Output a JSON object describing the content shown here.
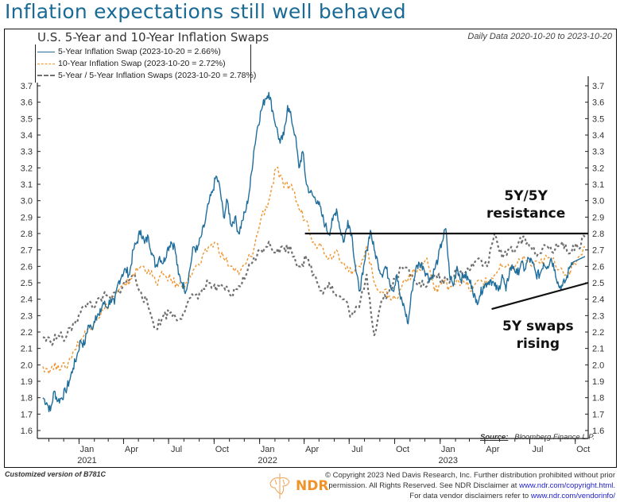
{
  "headline": "Inflation expectations still well behaved",
  "chart_data": {
    "type": "line",
    "title": "U.S. 5-Year and 10-Year Inflation Swaps",
    "subtitle_right": "Daily Data 2020-10-20 to 2023-10-20",
    "xlabel": "",
    "ylabel": "",
    "ylim": [
      1.55,
      3.75
    ],
    "yticks": [
      "1.6",
      "1.7",
      "1.8",
      "1.9",
      "2.0",
      "2.1",
      "2.2",
      "2.3",
      "2.4",
      "2.5",
      "2.6",
      "2.7",
      "2.8",
      "2.9",
      "3.0",
      "3.1",
      "3.2",
      "3.3",
      "3.4",
      "3.5",
      "3.6",
      "3.7"
    ],
    "xlim": [
      "2020-10-20",
      "2023-10-20"
    ],
    "xticks": [
      {
        "date": "2021-01-01",
        "label": "Jan",
        "year": "2021"
      },
      {
        "date": "2021-04-01",
        "label": "Apr",
        "year": ""
      },
      {
        "date": "2021-07-01",
        "label": "Jul",
        "year": ""
      },
      {
        "date": "2021-10-01",
        "label": "Oct",
        "year": ""
      },
      {
        "date": "2022-01-01",
        "label": "Jan",
        "year": "2022"
      },
      {
        "date": "2022-04-01",
        "label": "Apr",
        "year": ""
      },
      {
        "date": "2022-07-01",
        "label": "Jul",
        "year": ""
      },
      {
        "date": "2022-10-01",
        "label": "Oct",
        "year": ""
      },
      {
        "date": "2023-01-01",
        "label": "Jan",
        "year": "2023"
      },
      {
        "date": "2023-04-01",
        "label": "Apr",
        "year": ""
      },
      {
        "date": "2023-07-01",
        "label": "Jul",
        "year": ""
      },
      {
        "date": "2023-10-01",
        "label": "Oct",
        "year": ""
      }
    ],
    "grid": false,
    "legend_position": "top-left",
    "series": [
      {
        "name": "5-Year Inflation Swap (2023-10-20 = 2.66%)",
        "color": "#1f6e9c",
        "style": "solid",
        "x_months": [
          0,
          0.25,
          0.5,
          0.75,
          1,
          1.25,
          1.5,
          1.75,
          2,
          2.25,
          2.5,
          2.75,
          3,
          3.25,
          3.5,
          3.75,
          4,
          4.25,
          4.5,
          4.75,
          5,
          5.25,
          5.5,
          5.75,
          6,
          6.25,
          6.5,
          6.75,
          7,
          7.25,
          7.5,
          7.75,
          8,
          8.25,
          8.5,
          8.75,
          9,
          9.25,
          9.5,
          9.75,
          10,
          10.25,
          10.5,
          10.75,
          11,
          11.25,
          11.5,
          11.75,
          12,
          12.25,
          12.5,
          12.75,
          13,
          13.25,
          13.5,
          13.75,
          14,
          14.25,
          14.5,
          14.75,
          15,
          15.25,
          15.5,
          15.75,
          16,
          16.25,
          16.5,
          16.75,
          17,
          17.25,
          17.5,
          17.75,
          18,
          18.25,
          18.5,
          18.75,
          19,
          19.25,
          19.5,
          19.75,
          20,
          20.25,
          20.5,
          20.75,
          21,
          21.25,
          21.5,
          21.75,
          22,
          22.25,
          22.5,
          22.75,
          23,
          23.25,
          23.5,
          23.75,
          24,
          24.25,
          24.5,
          24.75,
          25,
          25.25,
          25.5,
          25.75,
          26,
          26.25,
          26.5,
          26.75,
          27,
          27.25,
          27.5,
          27.75,
          28,
          28.25,
          28.5,
          28.75,
          29,
          29.25,
          29.5,
          29.75,
          30,
          30.25,
          30.5,
          30.75,
          31,
          31.25,
          31.5,
          31.75,
          32,
          32.25,
          32.5,
          32.75,
          33,
          33.25,
          33.5,
          33.75,
          34,
          34.25,
          34.5,
          34.75,
          35,
          35.25,
          35.5,
          35.75,
          36
        ],
        "values": [
          1.8,
          1.77,
          1.72,
          1.84,
          1.78,
          1.8,
          1.84,
          1.9,
          1.98,
          2.05,
          2.15,
          2.12,
          2.24,
          2.22,
          2.3,
          2.3,
          2.38,
          2.35,
          2.4,
          2.37,
          2.5,
          2.55,
          2.58,
          2.55,
          2.7,
          2.75,
          2.82,
          2.74,
          2.78,
          2.68,
          2.6,
          2.66,
          2.62,
          2.7,
          2.75,
          2.72,
          2.55,
          2.5,
          2.45,
          2.58,
          2.72,
          2.7,
          2.78,
          2.86,
          2.98,
          3.05,
          3.15,
          3.08,
          2.9,
          3.0,
          2.85,
          2.9,
          2.8,
          2.88,
          2.95,
          3.08,
          3.3,
          3.45,
          3.55,
          3.62,
          3.66,
          3.55,
          3.45,
          3.35,
          3.4,
          3.58,
          3.5,
          3.4,
          3.2,
          3.3,
          3.1,
          3.05,
          3.02,
          3.0,
          2.92,
          2.85,
          2.8,
          2.88,
          2.95,
          2.82,
          2.75,
          2.88,
          2.8,
          2.6,
          2.45,
          2.55,
          2.7,
          2.82,
          2.7,
          2.62,
          2.55,
          2.6,
          2.52,
          2.45,
          2.55,
          2.4,
          2.35,
          2.25,
          2.45,
          2.58,
          2.62,
          2.6,
          2.55,
          2.52,
          2.58,
          2.65,
          2.75,
          2.83,
          2.55,
          2.48,
          2.6,
          2.52,
          2.55,
          2.52,
          2.48,
          2.38,
          2.42,
          2.48,
          2.5,
          2.52,
          2.48,
          2.45,
          2.55,
          2.45,
          2.58,
          2.6,
          2.55,
          2.62,
          2.58,
          2.65,
          2.62,
          2.55,
          2.55,
          2.62,
          2.6,
          2.65,
          2.58,
          2.48,
          2.48,
          2.52,
          2.6,
          2.66
        ]
      },
      {
        "name": "10-Year Inflation Swap (2023-10-20 = 2.72%)",
        "color": "#f0932b",
        "style": "dashed",
        "x_months": [
          0,
          0.5,
          1,
          1.5,
          2,
          2.5,
          3,
          3.5,
          4,
          4.5,
          5,
          5.5,
          6,
          6.5,
          7,
          7.5,
          8,
          8.5,
          9,
          9.5,
          10,
          10.5,
          11,
          11.5,
          12,
          12.5,
          13,
          13.5,
          14,
          14.5,
          15,
          15.5,
          16,
          16.5,
          17,
          17.5,
          18,
          18.5,
          19,
          19.5,
          20,
          20.5,
          21,
          21.5,
          22,
          22.5,
          23,
          23.5,
          24,
          24.5,
          25,
          25.5,
          26,
          26.5,
          27,
          27.5,
          28,
          28.5,
          29,
          29.5,
          30,
          30.5,
          31,
          31.5,
          32,
          32.5,
          33,
          33.5,
          34,
          34.5,
          35,
          35.5,
          36
        ],
        "values": [
          1.99,
          1.97,
          2.0,
          1.98,
          2.08,
          2.15,
          2.22,
          2.28,
          2.33,
          2.38,
          2.45,
          2.48,
          2.55,
          2.6,
          2.58,
          2.5,
          2.55,
          2.52,
          2.48,
          2.5,
          2.58,
          2.62,
          2.72,
          2.74,
          2.65,
          2.6,
          2.55,
          2.62,
          2.7,
          2.9,
          3.0,
          3.2,
          3.08,
          3.1,
          2.95,
          2.88,
          2.75,
          2.72,
          2.65,
          2.7,
          2.62,
          2.55,
          2.6,
          2.72,
          2.5,
          2.45,
          2.42,
          2.4,
          2.52,
          2.55,
          2.58,
          2.65,
          2.45,
          2.5,
          2.48,
          2.52,
          2.5,
          2.45,
          2.52,
          2.5,
          2.55,
          2.6,
          2.58,
          2.62,
          2.65,
          2.6,
          2.62,
          2.65,
          2.62,
          2.58,
          2.55,
          2.65,
          2.72
        ]
      },
      {
        "name": "5-Year / 5-Year Inflation Swaps (2023-10-20 = 2.78%)",
        "color": "#707070",
        "style": "dashed",
        "x_months": [
          0,
          0.5,
          1,
          1.5,
          2,
          2.5,
          3,
          3.5,
          4,
          4.5,
          5,
          5.5,
          6,
          6.5,
          7,
          7.5,
          8,
          8.5,
          9,
          9.5,
          10,
          10.5,
          11,
          11.5,
          12,
          12.5,
          13,
          13.5,
          14,
          14.5,
          15,
          15.5,
          16,
          16.5,
          17,
          17.5,
          18,
          18.5,
          19,
          19.5,
          20,
          20.5,
          21,
          21.5,
          22,
          22.5,
          23,
          23.5,
          24,
          24.5,
          25,
          25.5,
          26,
          26.5,
          27,
          27.5,
          28,
          28.5,
          29,
          29.5,
          30,
          30.5,
          31,
          31.5,
          32,
          32.5,
          33,
          33.5,
          34,
          34.5,
          35,
          35.5,
          36
        ],
        "values": [
          2.17,
          2.14,
          2.18,
          2.16,
          2.25,
          2.32,
          2.38,
          2.36,
          2.42,
          2.4,
          2.45,
          2.5,
          2.55,
          2.45,
          2.35,
          2.22,
          2.3,
          2.32,
          2.28,
          2.35,
          2.42,
          2.44,
          2.5,
          2.45,
          2.48,
          2.42,
          2.48,
          2.55,
          2.65,
          2.7,
          2.75,
          2.68,
          2.72,
          2.7,
          2.6,
          2.65,
          2.55,
          2.45,
          2.5,
          2.42,
          2.4,
          2.3,
          2.35,
          2.55,
          2.18,
          2.4,
          2.45,
          2.55,
          2.6,
          2.55,
          2.5,
          2.48,
          2.55,
          2.52,
          2.5,
          2.58,
          2.55,
          2.62,
          2.65,
          2.6,
          2.8,
          2.65,
          2.7,
          2.72,
          2.78,
          2.7,
          2.68,
          2.72,
          2.7,
          2.75,
          2.68,
          2.72,
          2.78
        ]
      }
    ],
    "reference_lines": [
      {
        "name": "5Y/5Y resistance line",
        "from": {
          "month": 17.4,
          "value": 2.8
        },
        "to": {
          "month": 36,
          "value": 2.8
        }
      },
      {
        "name": "5Y swaps rising trendline",
        "from": {
          "month": 29.8,
          "value": 2.34
        },
        "to": {
          "month": 36,
          "value": 2.5
        }
      }
    ],
    "annotations": [
      {
        "text_line1": "5Y/5Y",
        "text_line2": "resistance"
      },
      {
        "text_line1": "5Y swaps",
        "text_line2": "rising"
      }
    ],
    "source": "Bloomberg Finance L.P."
  },
  "legend": [
    {
      "label": "5-Year Inflation Swap (2023-10-20 = 2.66%)",
      "color": "#1f6e9c",
      "style": "solid"
    },
    {
      "label": "10-Year Inflation Swap (2023-10-20 = 2.72%)",
      "color": "#f0932b",
      "style": "dashed"
    },
    {
      "label": "5-Year / 5-Year Inflation Swaps (2023-10-20 = 2.78%)",
      "color": "#707070",
      "style": "dashed"
    }
  ],
  "source_label": "Source:",
  "source_value": "Bloomberg Finance L.P.",
  "footer": {
    "left": "Customized version of B781C",
    "logo_text": "NDR",
    "line1": "© Copyright 2023 Ned Davis Research, Inc. Further distribution prohibited without prior",
    "line2_prefix": "permission. All Rights Reserved. See NDR Disclaimer at",
    "line2_link": "www.ndr.com/copyright.html.",
    "line3_prefix": "For data vendor disclaimers refer to",
    "line3_link": "www.ndr.com/vendorinfo/"
  }
}
